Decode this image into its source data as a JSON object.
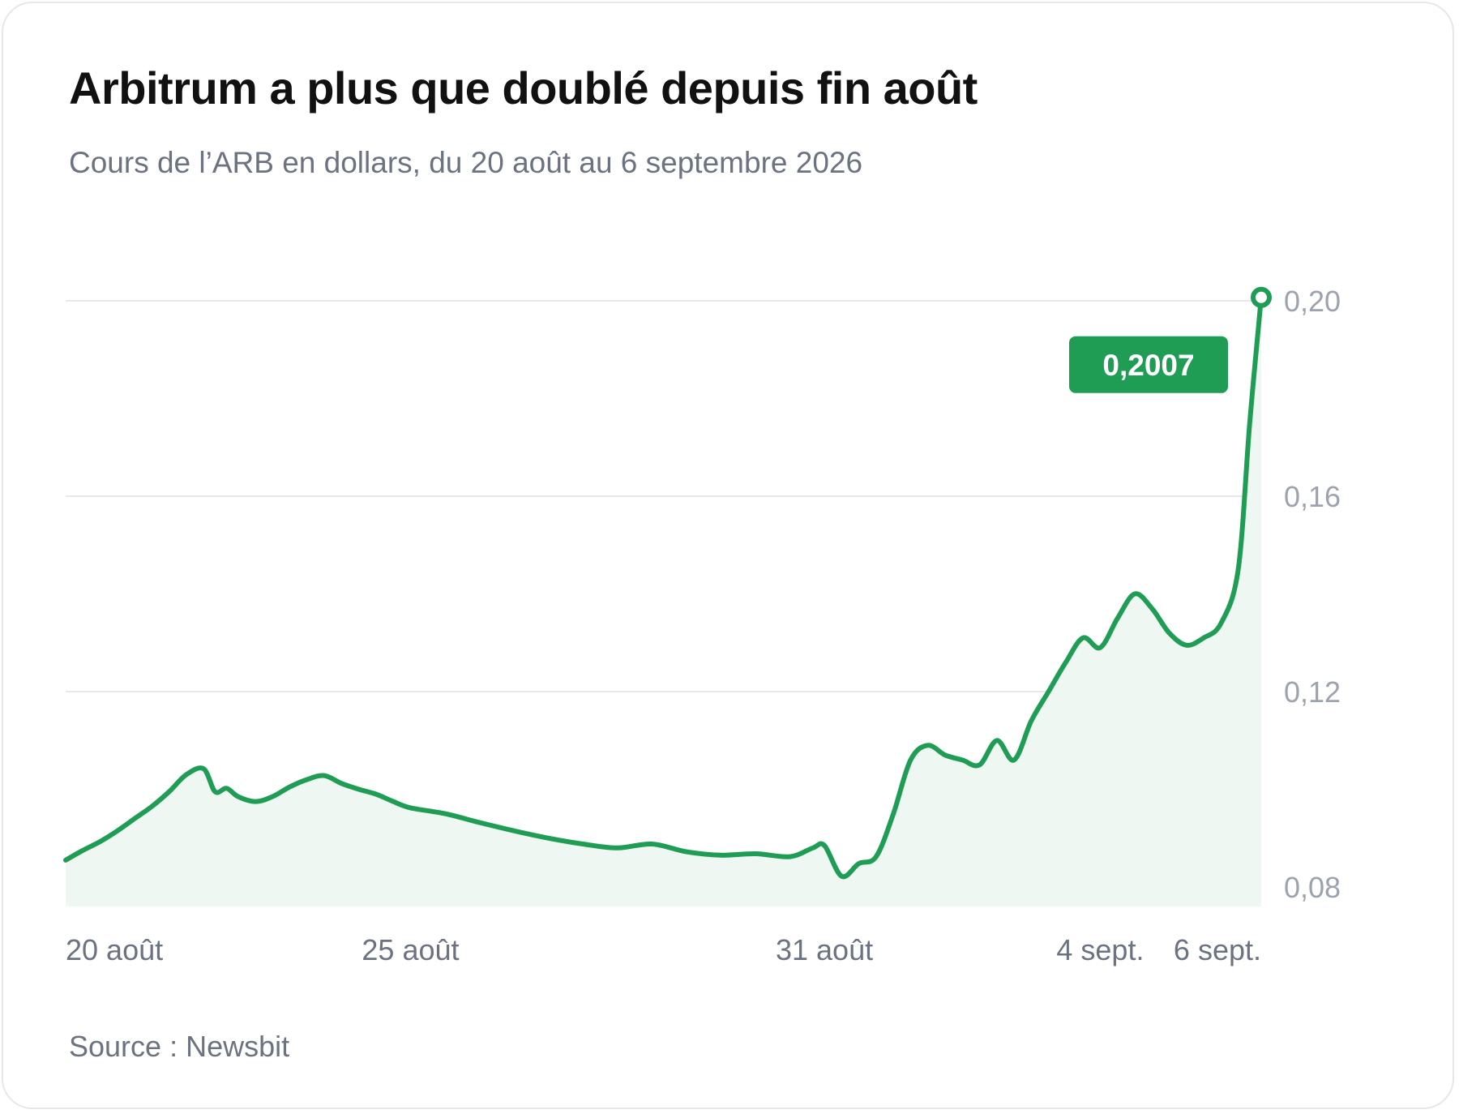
{
  "title": "Arbitrum a plus que doublé depuis fin août",
  "subtitle": "Cours de l’ARB en dollars, du 20 août au 6 septembre 2026",
  "source": "Source : Newsbit",
  "colors": {
    "line": "#1f9d55",
    "area": "#eef7f1",
    "grid": "#e8e8e8",
    "tick_text": "#9ca3af",
    "axis_text": "#6b7280",
    "badge": "#1f9d55",
    "badge_text": "#ffffff"
  },
  "chart_data": {
    "type": "area",
    "title": "Arbitrum a plus que doublé depuis fin août",
    "subtitle": "Cours de l’ARB en dollars, du 20 août au 6 septembre 2026",
    "xlabel": "",
    "ylabel": "",
    "xlim": [
      "2026-08-20T00:00",
      "2026-09-06T08:00"
    ],
    "ylim": [
      0.076,
      0.2
    ],
    "y_ticks": [
      0.08,
      0.12,
      0.16,
      0.2
    ],
    "y_tick_labels": [
      "0,08",
      "0,12",
      "0,16",
      "0,20"
    ],
    "x_ticks": [
      "2026-08-20T00:00",
      "2026-08-25T00:00",
      "2026-08-31T00:00",
      "2026-09-04T00:00",
      "2026-09-06T00:00"
    ],
    "x_tick_labels": [
      "20 août",
      "25 août",
      "31 août",
      "4 sept.",
      "6 sept."
    ],
    "grid": "horizontal",
    "annotation": {
      "label": "0,2007",
      "x": "2026-09-06T08:00",
      "y": 0.2007
    },
    "series": [
      {
        "x": [
          "2026-08-20T00:00",
          "2026-08-20T06:00",
          "2026-08-20T12:00",
          "2026-08-20T18:00",
          "2026-08-21T00:00",
          "2026-08-21T06:00",
          "2026-08-21T12:00",
          "2026-08-21T18:00",
          "2026-08-22T00:00",
          "2026-08-22T04:00",
          "2026-08-22T08:00",
          "2026-08-22T12:00",
          "2026-08-22T18:00",
          "2026-08-23T00:00",
          "2026-08-23T06:00",
          "2026-08-23T12:00",
          "2026-08-23T18:00",
          "2026-08-24T00:00",
          "2026-08-24T06:00",
          "2026-08-24T12:00",
          "2026-08-24T18:00",
          "2026-08-25T00:00",
          "2026-08-25T12:00",
          "2026-08-26T00:00",
          "2026-08-26T12:00",
          "2026-08-27T00:00",
          "2026-08-27T12:00",
          "2026-08-28T00:00",
          "2026-08-28T12:00",
          "2026-08-29T00:00",
          "2026-08-29T12:00",
          "2026-08-30T00:00",
          "2026-08-30T12:00",
          "2026-08-30T20:00",
          "2026-08-31T00:00",
          "2026-08-31T06:00",
          "2026-08-31T12:00",
          "2026-08-31T18:00",
          "2026-09-01T00:00",
          "2026-09-01T06:00",
          "2026-09-01T12:00",
          "2026-09-01T18:00",
          "2026-09-02T00:00",
          "2026-09-02T06:00",
          "2026-09-02T12:00",
          "2026-09-02T18:00",
          "2026-09-03T00:00",
          "2026-09-03T06:00",
          "2026-09-03T12:00",
          "2026-09-03T18:00",
          "2026-09-04T00:00",
          "2026-09-04T06:00",
          "2026-09-04T12:00",
          "2026-09-04T18:00",
          "2026-09-05T00:00",
          "2026-09-05T06:00",
          "2026-09-05T12:00",
          "2026-09-05T18:00",
          "2026-09-06T00:00",
          "2026-09-06T04:00",
          "2026-09-06T08:00"
        ],
        "values": [
          0.0855,
          0.0875,
          0.0893,
          0.0915,
          0.094,
          0.0965,
          0.0995,
          0.103,
          0.1042,
          0.0995,
          0.1002,
          0.0985,
          0.0975,
          0.0985,
          0.1005,
          0.102,
          0.1028,
          0.1012,
          0.1,
          0.099,
          0.0975,
          0.0962,
          0.095,
          0.0932,
          0.0915,
          0.09,
          0.0888,
          0.088,
          0.0888,
          0.0872,
          0.0865,
          0.0868,
          0.0862,
          0.088,
          0.0885,
          0.0822,
          0.0848,
          0.0862,
          0.095,
          0.106,
          0.109,
          0.107,
          0.106,
          0.105,
          0.11,
          0.106,
          0.114,
          0.12,
          0.126,
          0.131,
          0.129,
          0.135,
          0.14,
          0.137,
          0.132,
          0.1295,
          0.131,
          0.134,
          0.145,
          0.175,
          0.2007
        ]
      }
    ]
  }
}
